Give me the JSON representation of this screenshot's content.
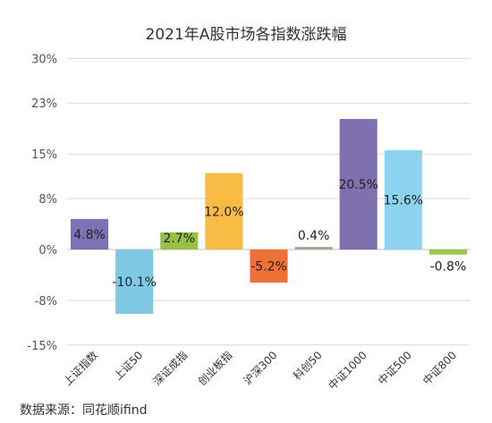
{
  "chart_data": {
    "type": "bar",
    "title": "2021年A股市场各指数涨跌幅",
    "categories": [
      "上证指数",
      "上证50",
      "深证成指",
      "创业板指",
      "沪深300",
      "科创50",
      "中证1000",
      "中证500",
      "中证800"
    ],
    "values": [
      4.8,
      -10.1,
      2.7,
      12.0,
      -5.2,
      0.4,
      20.5,
      15.6,
      -0.8
    ],
    "data_labels": [
      "4.8%",
      "-10.1%",
      "2.7%",
      "12.0%",
      "-5.2%",
      "0.4%",
      "20.5%",
      "15.6%",
      "-0.8%"
    ],
    "bar_colors": [
      "#7B73B5",
      "#7EC8E3",
      "#96C046",
      "#F8BC45",
      "#F07137",
      "#A4A393",
      "#8070B0",
      "#8CD3EF",
      "#9AC84E"
    ],
    "yticks": [
      30,
      23,
      15,
      8,
      0,
      -8,
      -15
    ],
    "ytick_labels": [
      "30%",
      "23%",
      "15%",
      "8%",
      "0%",
      "-8%",
      "-15%"
    ],
    "ylim": [
      -15,
      30
    ],
    "xlabel": "",
    "ylabel": "",
    "grid": true,
    "legend": "none"
  },
  "source_note": "数据来源：同花顺ifind",
  "colors": {
    "grid": "#d9d9d9",
    "axis": "#bfbfbf",
    "text": "#333333"
  }
}
